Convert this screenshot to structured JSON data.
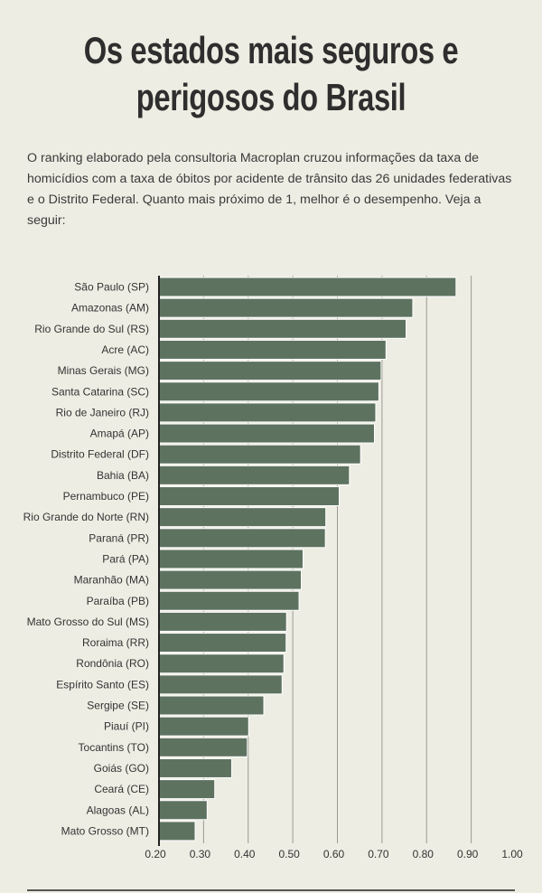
{
  "header": {
    "title_line1": "Os estados mais seguros e",
    "title_line2": "perigosos do Brasil",
    "intro": "O ranking elaborado pela consultoria Macroplan cruzou informações da taxa de homicídios com a taxa de óbitos por acidente de trânsito das 26 unidades federativas e o Distrito Federal.  Quanto mais próximo de 1, melhor é o desempenho.  Veja a seguir:"
  },
  "colors": {
    "background": "#eeede3",
    "bar": "#5e7260"
  },
  "chart_data": {
    "type": "bar",
    "orientation": "horizontal",
    "title": "",
    "xlabel": "",
    "ylabel": "",
    "xlim": [
      0.2,
      1.0
    ],
    "ticks": [
      "0.20",
      "0.30",
      "0.40",
      "0.50",
      "0.60",
      "0.70",
      "0.80",
      "0.90",
      "1.00"
    ],
    "tick_values": [
      0.2,
      0.3,
      0.4,
      0.5,
      0.6,
      0.7,
      0.8,
      0.9,
      1.0
    ],
    "grid": true,
    "categories": [
      "São Paulo (SP)",
      "Amazonas (AM)",
      "Rio Grande do Sul (RS)",
      "Acre (AC)",
      "Minas Gerais (MG)",
      "Santa Catarina (SC)",
      "Rio de Janeiro (RJ)",
      "Amapá (AP)",
      "Distrito Federal (DF)",
      "Bahia (BA)",
      "Pernambuco (PE)",
      "Rio Grande do Norte (RN)",
      "Paraná (PR)",
      "Pará (PA)",
      "Maranhão (MA)",
      "Paraíba (PB)",
      "Mato Grosso do Sul (MS)",
      "Roraima (RR)",
      "Rondônia (RO)",
      "Espírito Santo (ES)",
      "Sergipe (SE)",
      "Piauí (PI)",
      "Tocantins (TO)",
      "Goiás (GO)",
      "Ceará (CE)",
      "Alagoas (AL)",
      "Mato Grosso (MT)"
    ],
    "values": [
      0.866,
      0.769,
      0.754,
      0.709,
      0.698,
      0.693,
      0.686,
      0.683,
      0.652,
      0.627,
      0.604,
      0.574,
      0.573,
      0.523,
      0.519,
      0.514,
      0.486,
      0.485,
      0.48,
      0.476,
      0.435,
      0.401,
      0.398,
      0.363,
      0.325,
      0.308,
      0.281
    ]
  }
}
